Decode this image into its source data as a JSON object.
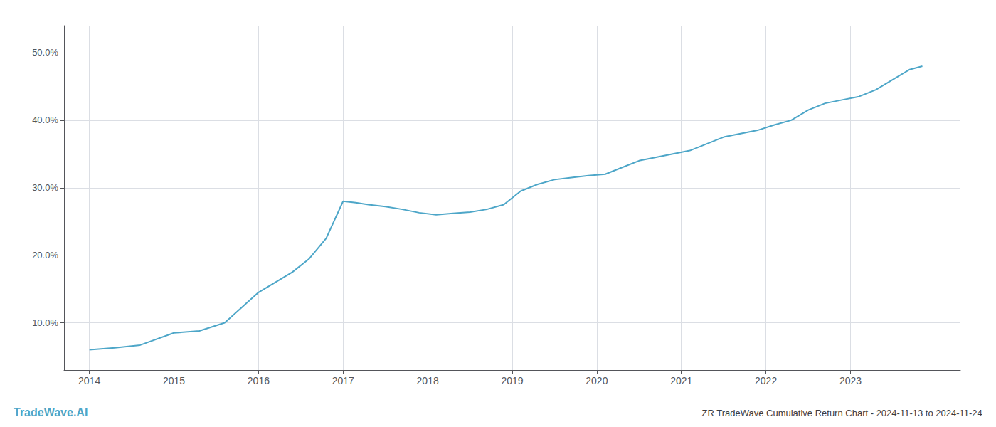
{
  "chart_data": {
    "type": "line",
    "title": "ZR TradeWave Cumulative Return Chart - 2024-11-13 to 2024-11-24",
    "annotations": [
      {
        "text": "TradeWave.AI",
        "color": "#4da6c8"
      }
    ],
    "x": [
      2014.0,
      2014.3,
      2014.6,
      2015.0,
      2015.3,
      2015.6,
      2016.0,
      2016.2,
      2016.4,
      2016.6,
      2016.8,
      2017.0,
      2017.15,
      2017.3,
      2017.5,
      2017.7,
      2017.9,
      2018.1,
      2018.3,
      2018.5,
      2018.7,
      2018.9,
      2019.1,
      2019.3,
      2019.5,
      2019.7,
      2019.9,
      2020.1,
      2020.3,
      2020.5,
      2020.7,
      2020.9,
      2021.1,
      2021.3,
      2021.5,
      2021.7,
      2021.9,
      2022.1,
      2022.3,
      2022.5,
      2022.7,
      2022.9,
      2023.1,
      2023.3,
      2023.5,
      2023.7,
      2023.85
    ],
    "values": [
      6.0,
      6.3,
      6.7,
      8.5,
      8.8,
      10.0,
      14.5,
      16.0,
      17.5,
      19.5,
      22.5,
      28.0,
      27.8,
      27.5,
      27.2,
      26.8,
      26.3,
      26.0,
      26.2,
      26.4,
      26.8,
      27.5,
      29.5,
      30.5,
      31.2,
      31.5,
      31.8,
      32.0,
      33.0,
      34.0,
      34.5,
      35.0,
      35.5,
      36.5,
      37.5,
      38.0,
      38.5,
      39.3,
      40.0,
      41.5,
      42.5,
      43.0,
      43.5,
      44.5,
      46.0,
      47.5,
      48.0
    ],
    "color": "#4da6c8",
    "xlim": [
      2013.7,
      2024.3
    ],
    "xticks": [
      2014,
      2015,
      2016,
      2017,
      2018,
      2019,
      2020,
      2021,
      2022,
      2023
    ],
    "ylim": [
      3.0,
      54.0
    ],
    "yticks": [
      {
        "value": 10.0,
        "label": "10.0%"
      },
      {
        "value": 20.0,
        "label": "20.0%"
      },
      {
        "value": 30.0,
        "label": "30.0%"
      },
      {
        "value": 40.0,
        "label": "40.0%"
      },
      {
        "value": 50.0,
        "label": "50.0%"
      }
    ],
    "grid": true
  }
}
